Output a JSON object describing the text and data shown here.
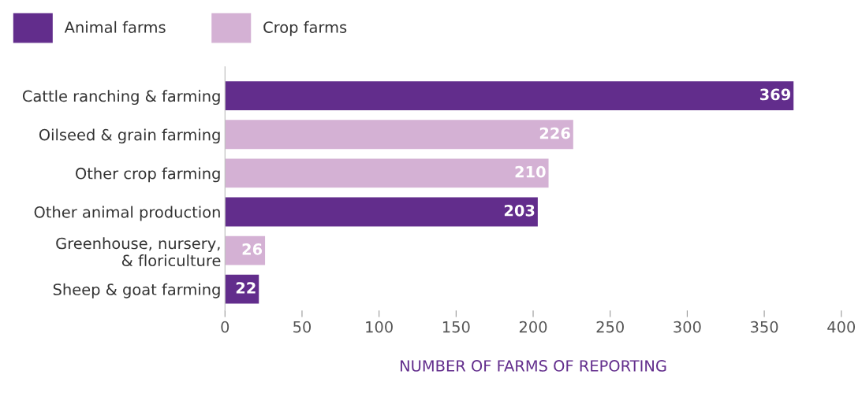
{
  "chart_data": {
    "type": "bar",
    "orientation": "horizontal",
    "xlabel": "NUMBER OF FARMS OF REPORTING",
    "categories": [
      "Cattle ranching & farming",
      "Oilseed & grain farming",
      "Other crop farming",
      "Other animal production",
      "Greenhouse, nursery,\n& floriculture",
      "Sheep & goat farming"
    ],
    "series": [
      {
        "name": "Animal farms",
        "color": "#622d8c",
        "values": [
          369,
          null,
          null,
          203,
          null,
          22
        ]
      },
      {
        "name": "Crop farms",
        "color": "#d4b1d4",
        "values": [
          null,
          226,
          210,
          null,
          26,
          null
        ]
      }
    ],
    "xlim": [
      0,
      400
    ],
    "xticks": [
      0,
      50,
      100,
      150,
      200,
      250,
      300,
      350,
      400
    ],
    "data_labels": true,
    "legend": "top left",
    "grid": false
  }
}
